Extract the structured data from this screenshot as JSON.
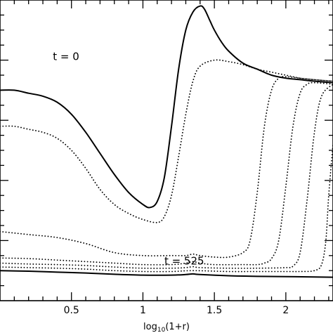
{
  "chart_data": {
    "type": "line",
    "title": "",
    "xlabel_main": "log",
    "xlabel_sub": "10",
    "xlabel_tail": "(1+r)",
    "ylabel": "",
    "xlim": [
      0.0,
      2.33
    ],
    "ylim": [
      0.0,
      1.0
    ],
    "x_ticks": [
      0.5,
      1.0,
      1.5,
      2.0
    ],
    "x_tick_labels": [
      "0.5",
      "1",
      "1.5",
      "2"
    ],
    "grid": false,
    "legend": "none",
    "annotations": [
      {
        "text": "t = 0",
        "x": 0.37,
        "y": 0.8
      },
      {
        "text": "t = 525",
        "x": 1.15,
        "y": 0.12
      }
    ],
    "series": [
      {
        "style": "solid",
        "x": [
          0,
          0.1,
          0.2,
          0.3,
          0.4,
          0.5,
          0.6,
          0.7,
          0.8,
          0.9,
          1.0,
          1.05,
          1.1,
          1.15,
          1.2,
          1.25,
          1.3,
          1.35,
          1.4,
          1.43,
          1.47,
          1.5,
          1.55,
          1.6,
          1.7,
          1.8,
          1.9,
          2.0,
          2.1,
          2.2,
          2.33
        ],
        "y": [
          0.7,
          0.7,
          0.69,
          0.68,
          0.66,
          0.62,
          0.56,
          0.49,
          0.42,
          0.36,
          0.32,
          0.31,
          0.33,
          0.41,
          0.58,
          0.77,
          0.9,
          0.96,
          0.98,
          0.97,
          0.93,
          0.9,
          0.86,
          0.83,
          0.79,
          0.77,
          0.75,
          0.74,
          0.735,
          0.73,
          0.725
        ]
      },
      {
        "style": "dotted",
        "x": [
          0,
          0.1,
          0.2,
          0.3,
          0.4,
          0.5,
          0.6,
          0.7,
          0.8,
          0.9,
          1.0,
          1.1,
          1.15,
          1.2,
          1.25,
          1.3,
          1.35,
          1.4,
          1.5,
          1.6,
          1.7,
          1.8,
          1.9,
          2.0,
          2.1,
          2.2,
          2.33
        ],
        "y": [
          0.58,
          0.58,
          0.57,
          0.56,
          0.54,
          0.5,
          0.44,
          0.37,
          0.32,
          0.29,
          0.27,
          0.26,
          0.28,
          0.35,
          0.48,
          0.62,
          0.73,
          0.78,
          0.8,
          0.795,
          0.785,
          0.77,
          0.76,
          0.75,
          0.74,
          0.735,
          0.73
        ]
      },
      {
        "style": "dotted",
        "x": [
          0,
          0.2,
          0.4,
          0.6,
          0.8,
          1.0,
          1.2,
          1.3,
          1.35,
          1.4,
          1.5,
          1.6,
          1.7,
          1.75,
          1.8,
          1.85,
          1.9,
          1.95,
          2.0,
          2.1,
          2.2,
          2.33
        ],
        "y": [
          0.23,
          0.22,
          0.21,
          0.19,
          0.16,
          0.15,
          0.15,
          0.15,
          0.155,
          0.15,
          0.145,
          0.145,
          0.16,
          0.2,
          0.36,
          0.58,
          0.7,
          0.74,
          0.745,
          0.74,
          0.735,
          0.73
        ]
      },
      {
        "style": "dotted",
        "x": [
          0,
          0.2,
          0.4,
          0.6,
          0.8,
          1.0,
          1.2,
          1.3,
          1.35,
          1.4,
          1.5,
          1.7,
          1.8,
          1.85,
          1.9,
          1.95,
          2.0,
          2.05,
          2.1,
          2.15,
          2.2,
          2.33
        ],
        "y": [
          0.142,
          0.14,
          0.135,
          0.13,
          0.125,
          0.12,
          0.12,
          0.125,
          0.13,
          0.125,
          0.12,
          0.12,
          0.12,
          0.125,
          0.14,
          0.2,
          0.38,
          0.58,
          0.69,
          0.72,
          0.725,
          0.72
        ]
      },
      {
        "style": "dotted",
        "x": [
          0,
          0.2,
          0.4,
          0.6,
          0.8,
          1.0,
          1.2,
          1.3,
          1.35,
          1.4,
          1.6,
          1.8,
          2.0,
          2.05,
          2.1,
          2.15,
          2.2,
          2.25,
          2.33
        ],
        "y": [
          0.125,
          0.122,
          0.12,
          0.117,
          0.112,
          0.108,
          0.108,
          0.11,
          0.113,
          0.11,
          0.108,
          0.108,
          0.11,
          0.115,
          0.16,
          0.34,
          0.56,
          0.68,
          0.72
        ]
      },
      {
        "style": "dotted",
        "x": [
          0,
          0.2,
          0.4,
          0.6,
          0.8,
          1.0,
          1.2,
          1.35,
          1.6,
          1.8,
          2.0,
          2.1,
          2.2,
          2.25,
          2.28,
          2.3,
          2.33
        ],
        "y": [
          0.112,
          0.11,
          0.108,
          0.105,
          0.1,
          0.097,
          0.097,
          0.1,
          0.097,
          0.097,
          0.097,
          0.097,
          0.1,
          0.12,
          0.2,
          0.35,
          0.52
        ]
      },
      {
        "style": "solid",
        "x": [
          0,
          0.2,
          0.4,
          0.6,
          0.8,
          1.0,
          1.2,
          1.3,
          1.35,
          1.4,
          1.6,
          1.8,
          2.0,
          2.2,
          2.33
        ],
        "y": [
          0.1,
          0.098,
          0.095,
          0.092,
          0.088,
          0.085,
          0.085,
          0.087,
          0.089,
          0.087,
          0.083,
          0.081,
          0.08,
          0.079,
          0.078
        ]
      }
    ]
  }
}
